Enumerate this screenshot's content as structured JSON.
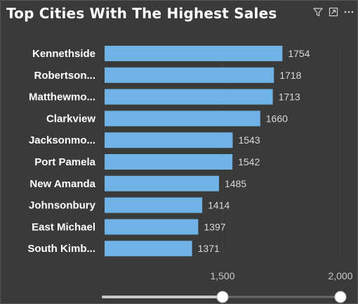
{
  "chart_data": {
    "type": "bar",
    "orientation": "horizontal",
    "title": "Top Cities With The Highest Sales",
    "categories": [
      "Kennethside",
      "Robertson...",
      "Matthewmo...",
      "Clarkview",
      "Jacksonmo...",
      "Port Pamela",
      "New Amanda",
      "Johnsonbury",
      "East Michael",
      "South Kimb..."
    ],
    "values": [
      1754,
      1718,
      1713,
      1660,
      1543,
      1542,
      1485,
      1414,
      1397,
      1371
    ],
    "xticks": [
      1500,
      2000
    ],
    "xtick_labels": [
      "1,500",
      "2,000"
    ],
    "xlim": [
      1000,
      2000
    ],
    "grid": true,
    "bar_color": "#6fb3e6",
    "range_slider": {
      "low": 1500,
      "high": 2000
    }
  },
  "header": {
    "icons": [
      "filter-icon",
      "focus-mode-icon",
      "more-options-icon"
    ]
  }
}
